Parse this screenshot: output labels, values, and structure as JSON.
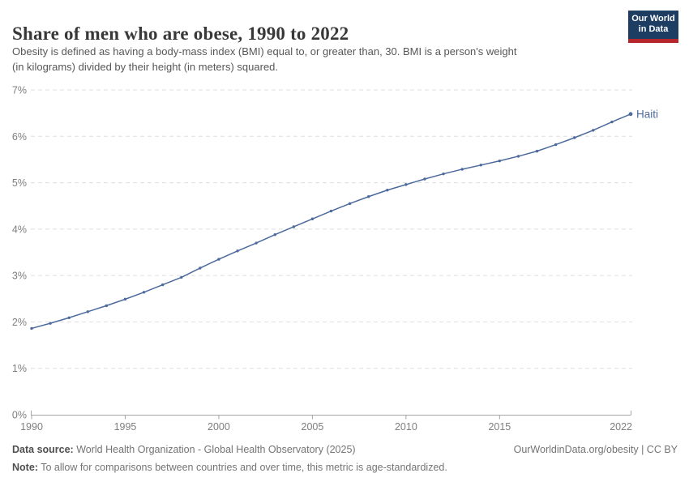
{
  "header": {
    "title": "Share of men who are obese, 1990 to 2022",
    "subtitle_lines": [
      "Obesity is defined as having a body-mass index (BMI) equal to, or greater than, 30. BMI is a person's weight",
      "(in kilograms) divided by their height (in meters) squared."
    ],
    "logo": {
      "line1": "Our World",
      "line2": "in Data"
    }
  },
  "chart_data": {
    "type": "line",
    "title": "Share of men who are obese, 1990 to 2022",
    "xlabel": "",
    "ylabel": "",
    "xlim": [
      1990,
      2022
    ],
    "ylim": [
      0,
      7
    ],
    "grid": "horizontal-dashed",
    "legend_position": "end-of-line-label",
    "x_ticks": [
      1990,
      1995,
      2000,
      2005,
      2010,
      2015,
      2022
    ],
    "y_ticks": [
      0,
      1,
      2,
      3,
      4,
      5,
      6,
      7
    ],
    "y_tick_labels": [
      "0%",
      "1%",
      "2%",
      "3%",
      "4%",
      "5%",
      "6%",
      "7%"
    ],
    "series": [
      {
        "name": "Haiti",
        "color": "#4C6A9C",
        "x": [
          1990,
          1991,
          1992,
          1993,
          1994,
          1995,
          1996,
          1997,
          1998,
          1999,
          2000,
          2001,
          2002,
          2003,
          2004,
          2005,
          2006,
          2007,
          2008,
          2009,
          2010,
          2011,
          2012,
          2013,
          2014,
          2015,
          2016,
          2017,
          2018,
          2019,
          2020,
          2021,
          2022
        ],
        "values": [
          1.86,
          1.97,
          2.09,
          2.22,
          2.35,
          2.49,
          2.64,
          2.8,
          2.96,
          3.16,
          3.35,
          3.53,
          3.7,
          3.88,
          4.05,
          4.22,
          4.39,
          4.55,
          4.7,
          4.84,
          4.96,
          5.08,
          5.19,
          5.29,
          5.38,
          5.47,
          5.57,
          5.68,
          5.82,
          5.97,
          6.13,
          6.31,
          6.48
        ]
      }
    ]
  },
  "footer": {
    "data_source_label": "Data source:",
    "data_source": " World Health Organization - Global Health Observatory (2025)",
    "link": "OurWorldinData.org/obesity | CC BY",
    "note_label": "Note:",
    "note": " To allow for comparisons between countries and over time, this metric is age-standardized."
  },
  "colors": {
    "line": "#4C6A9C",
    "grid": "#dddddd",
    "axis": "#a5a5a5",
    "tick_text": "#7e7e7e",
    "title_text": "#383838",
    "subtitle_text": "#575757",
    "footer_text": "#747474",
    "logo_bg": "#1d3d63",
    "logo_stripe": "#b5262d"
  }
}
